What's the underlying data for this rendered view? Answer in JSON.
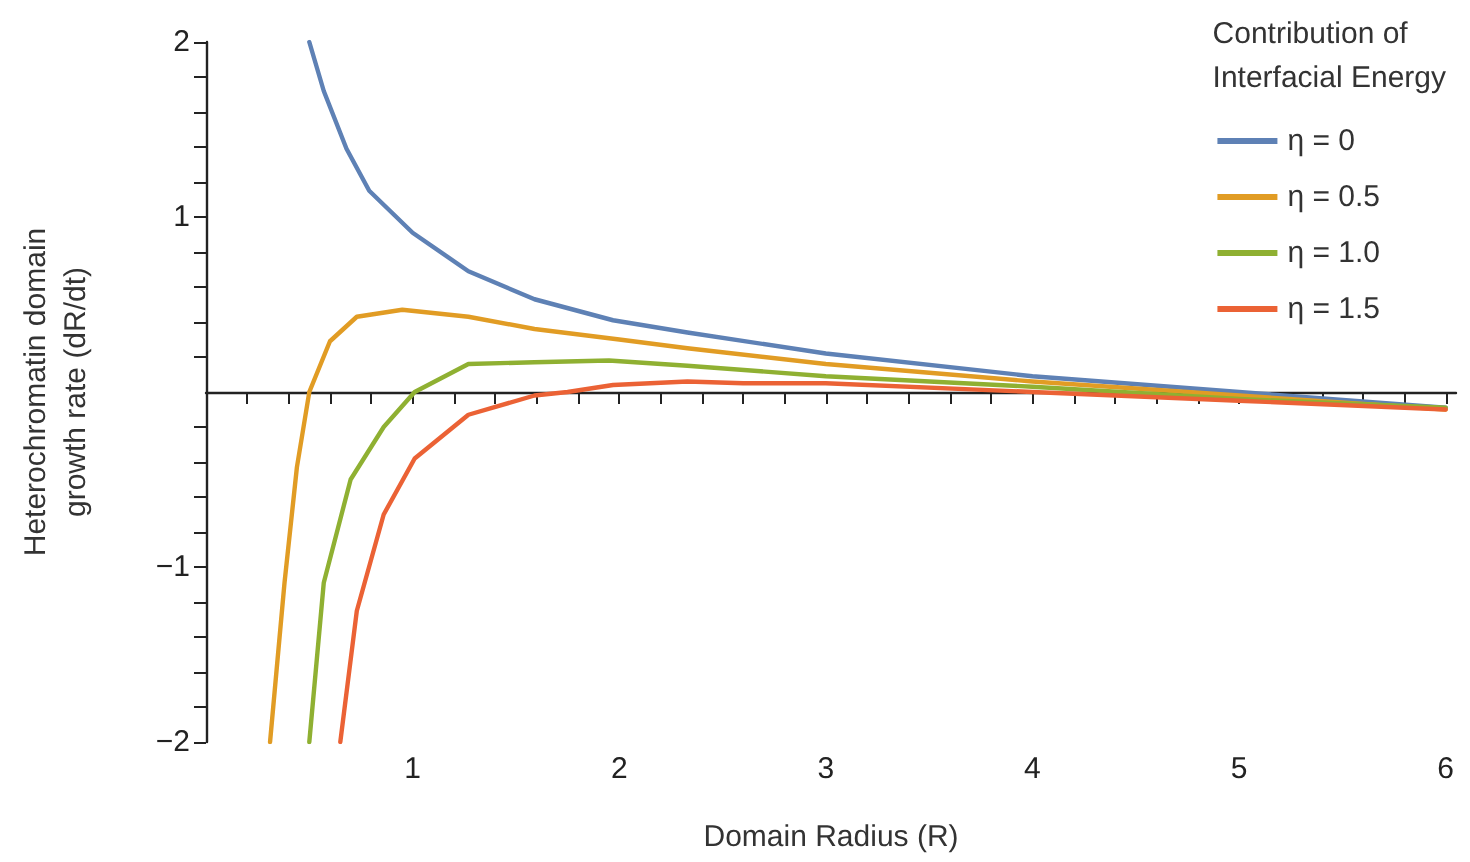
{
  "chart_data": {
    "type": "line",
    "xlabel": "Domain Radius (R)",
    "ylabel": "Heterochromatin domain\ngrowth rate (dR/dt)",
    "legend_title": "Contribution of\nInterfacial Energy",
    "legend": "top right",
    "grid": false,
    "marker": "none",
    "line_style": "solid",
    "xlim": [
      0,
      6.05
    ],
    "ylim": [
      -2,
      2
    ],
    "xticks": [
      {
        "value": 0.2,
        "label": null
      },
      {
        "value": 0.4,
        "label": null
      },
      {
        "value": 0.6,
        "label": null
      },
      {
        "value": 0.8,
        "label": null
      },
      1,
      {
        "value": 1.2,
        "label": null
      },
      {
        "value": 1.4,
        "label": null
      },
      {
        "value": 1.6,
        "label": null
      },
      {
        "value": 1.8,
        "label": null
      },
      2,
      {
        "value": 2.2,
        "label": null
      },
      {
        "value": 2.4,
        "label": null
      },
      {
        "value": 2.6,
        "label": null
      },
      {
        "value": 2.8,
        "label": null
      },
      3,
      {
        "value": 3.2,
        "label": null
      },
      {
        "value": 3.4,
        "label": null
      },
      {
        "value": 3.6,
        "label": null
      },
      {
        "value": 3.8,
        "label": null
      },
      4,
      {
        "value": 4.2,
        "label": null
      },
      {
        "value": 4.4,
        "label": null
      },
      {
        "value": 4.6,
        "label": null
      },
      {
        "value": 4.8,
        "label": null
      },
      5,
      {
        "value": 5.2,
        "label": null
      },
      {
        "value": 5.4,
        "label": null
      },
      {
        "value": 5.6,
        "label": null
      },
      {
        "value": 5.8,
        "label": null
      },
      6
    ],
    "yticks": [
      -2,
      {
        "value": -1.8,
        "label": null
      },
      {
        "value": -1.6,
        "label": null
      },
      {
        "value": -1.4,
        "label": null
      },
      {
        "value": -1.2,
        "label": null
      },
      -1,
      {
        "value": -0.8,
        "label": null
      },
      {
        "value": -0.6,
        "label": null
      },
      {
        "value": -0.4,
        "label": null
      },
      {
        "value": -0.2,
        "label": null
      },
      {
        "value": 0.2,
        "label": null
      },
      {
        "value": 0.4,
        "label": null
      },
      {
        "value": 0.6,
        "label": null
      },
      {
        "value": 0.8,
        "label": null
      },
      1,
      {
        "value": 1.2,
        "label": null
      },
      {
        "value": 1.4,
        "label": null
      },
      {
        "value": 1.6,
        "label": null
      },
      {
        "value": 1.8,
        "label": null
      },
      2
    ],
    "series": [
      {
        "name": "η = 0",
        "color": "#5e81b5",
        "x": [
          0.5,
          0.57,
          0.68,
          0.79,
          1.0,
          1.27,
          1.59,
          1.97,
          2.33,
          3,
          4,
          5,
          6
        ],
        "values": [
          2.0,
          1.72,
          1.39,
          1.15,
          0.91,
          0.69,
          0.53,
          0.41,
          0.34,
          0.22,
          0.09,
          0,
          -0.09
        ]
      },
      {
        "name": "η = 0.5",
        "color": "#e19c24",
        "x": [
          0.31,
          0.38,
          0.44,
          0.5,
          0.6,
          0.73,
          0.95,
          1.27,
          1.59,
          2,
          2.33,
          3,
          4,
          5,
          6
        ],
        "values": [
          -2,
          -1.09,
          -0.43,
          0,
          0.29,
          0.43,
          0.47,
          0.43,
          0.36,
          0.3,
          0.25,
          0.16,
          0.06,
          -0.02,
          -0.1
        ]
      },
      {
        "name": "η = 1.0",
        "color": "#8fb032",
        "x": [
          0.5,
          0.57,
          0.7,
          0.86,
          1.01,
          1.27,
          1.59,
          1.95,
          2.33,
          3,
          4,
          5,
          6
        ],
        "values": [
          -2,
          -1.09,
          -0.5,
          -0.2,
          0,
          0.16,
          0.17,
          0.18,
          0.15,
          0.09,
          0.03,
          -0.04,
          -0.09
        ]
      },
      {
        "name": "η = 1.5",
        "color": "#eb6235",
        "x": [
          0.65,
          0.73,
          0.86,
          1.01,
          1.27,
          1.59,
          1.75,
          1.97,
          2.33,
          2.6,
          3,
          4,
          5,
          6
        ],
        "values": [
          -2,
          -1.25,
          -0.7,
          -0.38,
          -0.13,
          -0.02,
          0,
          0.04,
          0.06,
          0.05,
          0.05,
          0,
          -0.05,
          -0.1
        ]
      }
    ]
  }
}
